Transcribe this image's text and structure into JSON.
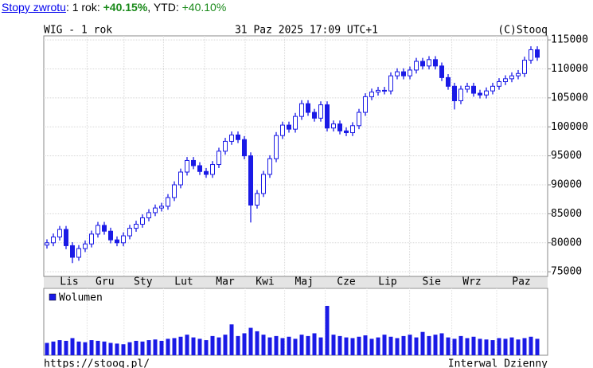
{
  "header": {
    "link": "Stopy zwrotu",
    "period_label": ": 1 rok: ",
    "return_1y": "+40.15%",
    "ytd_label": ", YTD: ",
    "return_ytd": "+40.10%"
  },
  "chart_data": {
    "type": "candlestick",
    "title": "WIG - 1 rok",
    "subtitle": "31 Paz 2025 17:09 UTC+1",
    "source": "(C)Stooq",
    "color": "#1a1ae6",
    "open": [
      79600,
      80000,
      81000,
      82300,
      79500,
      77500,
      79000,
      79800,
      81500,
      83000,
      82000,
      80500,
      80000,
      81200,
      82500,
      83200,
      84300,
      85200,
      86000,
      86300,
      87800,
      90000,
      92200,
      94200,
      93300,
      92300,
      91800,
      93500,
      95800,
      97500,
      98600,
      97800,
      95000,
      86500,
      88500,
      91800,
      94500,
      98500,
      100300,
      99600,
      101800,
      104000,
      102500,
      101500,
      103800,
      99800,
      100500,
      99300,
      99000,
      100200,
      102500,
      105200,
      106000,
      106300,
      106200,
      108800,
      109500,
      108800,
      109800,
      111300,
      110500,
      111600,
      110500,
      108500,
      107000,
      104500,
      106500,
      107000,
      105800,
      105500,
      106200,
      107000,
      107800,
      108300,
      108800,
      109200,
      111500,
      113300
    ],
    "high": [
      80600,
      81600,
      82900,
      82900,
      80100,
      79600,
      80400,
      82100,
      83600,
      83600,
      82600,
      81100,
      81800,
      83100,
      83800,
      84900,
      85800,
      86600,
      86900,
      88400,
      90600,
      92800,
      94800,
      94800,
      93900,
      92900,
      94100,
      96400,
      98100,
      99200,
      99200,
      98400,
      95600,
      89100,
      92400,
      95100,
      99100,
      100900,
      100900,
      102400,
      104600,
      104600,
      103100,
      104400,
      104400,
      101100,
      101100,
      99900,
      100800,
      103100,
      105800,
      106600,
      106900,
      106900,
      109400,
      110100,
      110100,
      110400,
      111900,
      111900,
      112200,
      112200,
      111100,
      109100,
      107600,
      107100,
      107600,
      107600,
      106400,
      106800,
      107600,
      108400,
      108900,
      109400,
      109800,
      112100,
      113900,
      113900
    ],
    "low": [
      79000,
      79400,
      80400,
      78900,
      76500,
      76900,
      78400,
      79200,
      80900,
      81400,
      79900,
      79400,
      79400,
      80600,
      81900,
      82600,
      83700,
      84600,
      85400,
      85700,
      87200,
      89400,
      91600,
      92700,
      91700,
      91200,
      91200,
      92900,
      95200,
      96900,
      97200,
      94400,
      83500,
      85900,
      87900,
      91200,
      93900,
      97900,
      99000,
      99000,
      101200,
      101900,
      100900,
      100900,
      99200,
      99200,
      98700,
      98400,
      98400,
      99600,
      101900,
      104600,
      105400,
      105600,
      105600,
      108200,
      108200,
      108200,
      109200,
      109900,
      109900,
      109900,
      107900,
      106400,
      103000,
      103900,
      105900,
      105200,
      104900,
      104900,
      105600,
      106400,
      107200,
      107700,
      108200,
      108600,
      110900,
      111400
    ],
    "close": [
      80000,
      81000,
      82300,
      79500,
      77500,
      79000,
      79800,
      81500,
      83000,
      82000,
      80500,
      80000,
      81200,
      82500,
      83200,
      84300,
      85200,
      86000,
      86300,
      87800,
      90000,
      92200,
      94200,
      93300,
      92300,
      91800,
      93500,
      95800,
      97500,
      98600,
      97800,
      95000,
      86500,
      88500,
      91800,
      94500,
      98500,
      100300,
      99600,
      101800,
      104000,
      102500,
      101500,
      103800,
      99800,
      100500,
      99300,
      99000,
      100200,
      102500,
      105200,
      106000,
      106300,
      106200,
      108800,
      109500,
      108800,
      109800,
      111300,
      110500,
      111600,
      110500,
      108500,
      107000,
      104500,
      106500,
      107000,
      105800,
      105500,
      106200,
      107000,
      107800,
      108300,
      108800,
      109200,
      111500,
      113300,
      112000
    ],
    "ylim": [
      74200,
      115700
    ],
    "yticks": [
      75000,
      80000,
      85000,
      90000,
      95000,
      100000,
      105000,
      110000,
      115000
    ],
    "xticks": [
      {
        "value": 3.5,
        "label": "Lis"
      },
      {
        "value": 9.1,
        "label": "Gru"
      },
      {
        "value": 15.1,
        "label": "Sty"
      },
      {
        "value": 21.5,
        "label": "Lut"
      },
      {
        "value": 28,
        "label": "Mar"
      },
      {
        "value": 34.25,
        "label": "Kwi"
      },
      {
        "value": 40.4,
        "label": "Maj"
      },
      {
        "value": 47,
        "label": "Cze"
      },
      {
        "value": 53.5,
        "label": "Lip"
      },
      {
        "value": 60.4,
        "label": "Sie"
      },
      {
        "value": 66.75,
        "label": "Wrz"
      },
      {
        "value": 74.5,
        "label": "Paz"
      }
    ],
    "grid": true,
    "volume": {
      "name": "Wolumen",
      "color": "#1a1ae6",
      "values": [
        18,
        20,
        22,
        21,
        25,
        20,
        19,
        22,
        21,
        20,
        18,
        17,
        16,
        19,
        21,
        20,
        22,
        23,
        21,
        24,
        25,
        27,
        30,
        26,
        24,
        22,
        28,
        26,
        30,
        45,
        28,
        32,
        40,
        35,
        30,
        26,
        28,
        25,
        27,
        24,
        30,
        28,
        32,
        26,
        72,
        30,
        28,
        26,
        25,
        27,
        29,
        24,
        26,
        30,
        27,
        25,
        28,
        30,
        26,
        34,
        28,
        30,
        32,
        26,
        24,
        28,
        25,
        27,
        24,
        23,
        22,
        25,
        24,
        26,
        23,
        25,
        27,
        24
      ]
    },
    "footer_left": "https://stooq.pl/",
    "footer_right": "Interwal Dzienny"
  }
}
